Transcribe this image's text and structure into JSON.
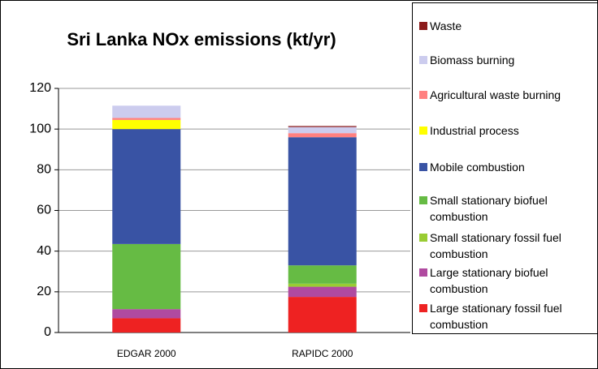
{
  "chart_data": {
    "type": "stacked_bar",
    "title": "Sri Lanka NOx emissions (kt/yr)",
    "categories": [
      "EDGAR 2000",
      "RAPIDC 2000"
    ],
    "series": [
      {
        "name": "Large stationary fossil fuel combustion",
        "color": "#ee2222",
        "values": [
          7,
          17.5
        ]
      },
      {
        "name": "Large stationary biofuel combustion",
        "color": "#b04aa0",
        "values": [
          4.5,
          5
        ]
      },
      {
        "name": "Small stationary fossil fuel combustion",
        "color": "#99cc33",
        "values": [
          0,
          1.5
        ]
      },
      {
        "name": "Small stationary biofuel combustion",
        "color": "#66bb44",
        "values": [
          32,
          9
        ]
      },
      {
        "name": "Mobile combustion",
        "color": "#3953a4",
        "values": [
          56.5,
          63
        ]
      },
      {
        "name": "Industrial process",
        "color": "#ffff00",
        "values": [
          4.5,
          0
        ]
      },
      {
        "name": "Agricultural waste burning",
        "color": "#ff8080",
        "values": [
          1,
          2
        ]
      },
      {
        "name": "Biomass burning",
        "color": "#ccccee",
        "values": [
          6,
          3
        ]
      },
      {
        "name": "Waste",
        "color": "#8b1a1a",
        "values": [
          0,
          0.5
        ]
      }
    ],
    "ylim": [
      0,
      120
    ],
    "yticks": [
      0,
      20,
      40,
      60,
      80,
      100,
      120
    ],
    "grid": true
  }
}
